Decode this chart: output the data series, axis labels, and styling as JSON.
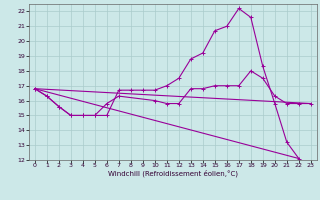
{
  "xlabel": "Windchill (Refroidissement éolien,°C)",
  "background_color": "#cce8e8",
  "grid_color": "#aacccc",
  "line_color": "#990099",
  "xlim": [
    -0.5,
    23.5
  ],
  "ylim": [
    12,
    22.5
  ],
  "xticks": [
    0,
    1,
    2,
    3,
    4,
    5,
    6,
    7,
    8,
    9,
    10,
    11,
    12,
    13,
    14,
    15,
    16,
    17,
    18,
    19,
    20,
    21,
    22,
    23
  ],
  "yticks": [
    12,
    13,
    14,
    15,
    16,
    17,
    18,
    19,
    20,
    21,
    22
  ],
  "line1_x": [
    0,
    1,
    2,
    3,
    4,
    5,
    6,
    7,
    8,
    9,
    10,
    11,
    12,
    13,
    14,
    15,
    16,
    17,
    18,
    19,
    20,
    21,
    22
  ],
  "line1_y": [
    16.8,
    16.3,
    15.6,
    15.0,
    15.0,
    15.0,
    15.0,
    16.7,
    16.7,
    16.7,
    16.7,
    17.0,
    17.5,
    18.8,
    19.2,
    20.7,
    21.0,
    22.2,
    21.6,
    18.3,
    15.8,
    13.2,
    12.1
  ],
  "line2_x": [
    0,
    1,
    2,
    3,
    4,
    5,
    6,
    7,
    10,
    11,
    12,
    13,
    14,
    15,
    16,
    17,
    18,
    19,
    20,
    21,
    22,
    23
  ],
  "line2_y": [
    16.8,
    16.3,
    15.6,
    15.0,
    15.0,
    15.0,
    15.8,
    16.3,
    16.0,
    15.8,
    15.8,
    16.8,
    16.8,
    17.0,
    17.0,
    17.0,
    18.0,
    17.5,
    16.3,
    15.8,
    15.8,
    15.8
  ],
  "line3_x": [
    0,
    22
  ],
  "line3_y": [
    16.8,
    12.1
  ],
  "line4_x": [
    0,
    23
  ],
  "line4_y": [
    16.8,
    15.8
  ]
}
